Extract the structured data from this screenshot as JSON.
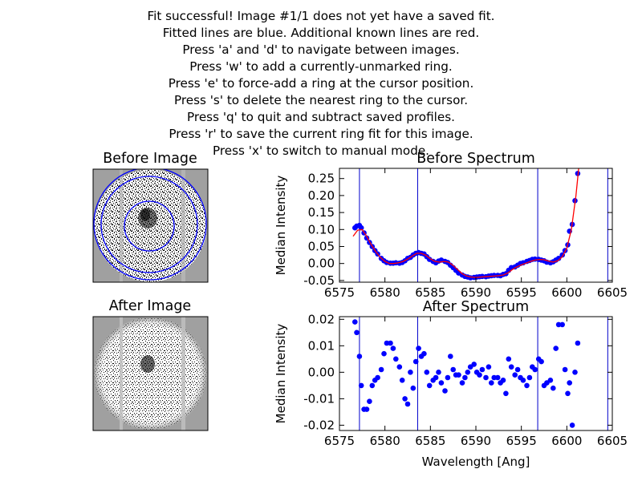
{
  "instructions": [
    "Fit successful! Image #1/1 does not yet have a saved fit.",
    "Fitted lines are blue. Additional known lines are red.",
    "Press 'a' and 'd' to navigate between images.",
    "Press 'w' to add a currently-unmarked ring.",
    "Press 'e' to force-add a ring at the cursor position.",
    "Press 's' to delete the nearest ring to the cursor.",
    "Press 'q' to quit and subtract saved profiles.",
    "Press 'r' to save the current ring fit for this image.",
    "Press 'x' to switch to manual mode."
  ],
  "images": {
    "before_title": "Before Image",
    "after_title": "After Image"
  },
  "colors": {
    "points": "#0000ff",
    "fit_line": "#ff0000",
    "ring_lines": "#0000cc",
    "image_background": "#a0a0a0"
  },
  "chart_data": [
    {
      "type": "scatter",
      "title": "Before Spectrum",
      "xlabel": "",
      "ylabel": "Median Intensity",
      "xlim": [
        6575,
        6605
      ],
      "ylim": [
        -0.055,
        0.28
      ],
      "xticks": [
        "6575",
        "6580",
        "6585",
        "6590",
        "6595",
        "6600",
        "6605"
      ],
      "yticks": [
        "-0.05",
        "0.00",
        "0.05",
        "0.10",
        "0.15",
        "0.20",
        "0.25"
      ],
      "vlines": [
        6577.2,
        6583.6,
        6596.8,
        6604.5
      ],
      "series": [
        {
          "kind": "points",
          "x": [
            6576.7,
            6576.9,
            6577.2,
            6577.4,
            6577.7,
            6578.0,
            6578.3,
            6578.6,
            6578.9,
            6579.2,
            6579.6,
            6579.9,
            6580.2,
            6580.6,
            6580.9,
            6581.2,
            6581.6,
            6581.9,
            6582.2,
            6582.5,
            6582.8,
            6583.1,
            6583.4,
            6583.7,
            6584.0,
            6584.3,
            6584.6,
            6584.9,
            6585.3,
            6585.6,
            6585.9,
            6586.2,
            6586.6,
            6586.9,
            6587.2,
            6587.5,
            6587.8,
            6588.1,
            6588.5,
            6588.8,
            6589.1,
            6589.4,
            6589.8,
            6590.1,
            6590.4,
            6590.7,
            6591.1,
            6591.4,
            6591.7,
            6592.0,
            6592.4,
            6592.7,
            6593.0,
            6593.3,
            6593.6,
            6593.9,
            6594.3,
            6594.6,
            6594.9,
            6595.2,
            6595.6,
            6595.9,
            6596.2,
            6596.5,
            6596.9,
            6597.2,
            6597.5,
            6597.8,
            6598.2,
            6598.5,
            6598.8,
            6599.1,
            6599.5,
            6599.8,
            6600.1,
            6600.3,
            6600.6,
            6600.9,
            6601.2
          ],
          "y": [
            0.105,
            0.11,
            0.112,
            0.105,
            0.09,
            0.075,
            0.062,
            0.05,
            0.038,
            0.028,
            0.015,
            0.008,
            0.003,
            0.001,
            0.001,
            0.002,
            0.001,
            0.003,
            0.008,
            0.015,
            0.018,
            0.025,
            0.03,
            0.032,
            0.03,
            0.028,
            0.02,
            0.012,
            0.006,
            0.002,
            0.007,
            0.01,
            0.006,
            0.003,
            -0.005,
            -0.012,
            -0.02,
            -0.028,
            -0.034,
            -0.038,
            -0.04,
            -0.042,
            -0.041,
            -0.04,
            -0.039,
            -0.038,
            -0.039,
            -0.037,
            -0.036,
            -0.035,
            -0.035,
            -0.036,
            -0.032,
            -0.03,
            -0.02,
            -0.012,
            -0.01,
            -0.005,
            0.0,
            0.002,
            0.006,
            0.009,
            0.012,
            0.013,
            0.012,
            0.01,
            0.008,
            0.004,
            0.002,
            0.005,
            0.01,
            0.015,
            0.025,
            0.038,
            0.055,
            0.095,
            0.115,
            0.185,
            0.265
          ]
        },
        {
          "kind": "line",
          "x": [
            6576.5,
            6577.0,
            6577.5,
            6578.0,
            6578.5,
            6579.0,
            6579.5,
            6580.0,
            6580.5,
            6581.0,
            6581.5,
            6582.0,
            6582.5,
            6583.0,
            6583.5,
            6584.0,
            6584.5,
            6585.0,
            6585.5,
            6586.0,
            6586.5,
            6587.0,
            6587.5,
            6588.0,
            6588.5,
            6589.0,
            6589.5,
            6590.0,
            6590.5,
            6591.0,
            6591.5,
            6592.0,
            6592.5,
            6593.0,
            6593.5,
            6594.0,
            6594.5,
            6595.0,
            6595.5,
            6596.0,
            6596.5,
            6597.0,
            6597.5,
            6598.0,
            6598.5,
            6599.0,
            6599.5,
            6600.0,
            6600.5,
            6601.0,
            6601.3
          ],
          "y": [
            0.08,
            0.098,
            0.1,
            0.08,
            0.055,
            0.035,
            0.018,
            0.006,
            0.0,
            0.0,
            0.002,
            0.006,
            0.013,
            0.022,
            0.03,
            0.03,
            0.024,
            0.014,
            0.006,
            0.004,
            0.006,
            0.004,
            -0.006,
            -0.018,
            -0.03,
            -0.037,
            -0.04,
            -0.041,
            -0.04,
            -0.039,
            -0.038,
            -0.037,
            -0.036,
            -0.034,
            -0.028,
            -0.018,
            -0.01,
            -0.004,
            0.001,
            0.006,
            0.01,
            0.012,
            0.011,
            0.007,
            0.004,
            0.008,
            0.02,
            0.045,
            0.1,
            0.2,
            0.28
          ]
        }
      ]
    },
    {
      "type": "scatter",
      "title": "After Spectrum",
      "xlabel": "Wavelength [Ang]",
      "ylabel": "Median Intensity",
      "xlim": [
        6575,
        6605
      ],
      "ylim": [
        -0.022,
        0.021
      ],
      "xticks": [
        "6575",
        "6580",
        "6585",
        "6590",
        "6595",
        "6600",
        "6605"
      ],
      "yticks": [
        "-0.02",
        "-0.01",
        "0.00",
        "0.01",
        "0.02"
      ],
      "vlines": [
        6577.2,
        6583.6,
        6596.8,
        6604.5
      ],
      "series": [
        {
          "kind": "points",
          "x": [
            6576.7,
            6576.9,
            6577.2,
            6577.4,
            6577.7,
            6578.0,
            6578.3,
            6578.6,
            6578.9,
            6579.2,
            6579.6,
            6579.9,
            6580.2,
            6580.6,
            6580.9,
            6581.2,
            6581.6,
            6581.9,
            6582.2,
            6582.5,
            6582.8,
            6583.1,
            6583.4,
            6583.7,
            6584.0,
            6584.3,
            6584.6,
            6584.9,
            6585.3,
            6585.6,
            6585.9,
            6586.2,
            6586.6,
            6586.9,
            6587.2,
            6587.5,
            6587.8,
            6588.1,
            6588.5,
            6588.8,
            6589.1,
            6589.4,
            6589.8,
            6590.1,
            6590.4,
            6590.7,
            6591.1,
            6591.4,
            6591.7,
            6592.0,
            6592.4,
            6592.7,
            6593.0,
            6593.3,
            6593.6,
            6593.9,
            6594.3,
            6594.6,
            6594.9,
            6595.2,
            6595.6,
            6595.9,
            6596.2,
            6596.5,
            6596.9,
            6597.2,
            6597.5,
            6597.8,
            6598.2,
            6598.5,
            6598.8,
            6599.1,
            6599.5,
            6599.8,
            6600.1,
            6600.3,
            6600.6,
            6600.9,
            6601.2
          ],
          "y": [
            0.019,
            0.015,
            0.006,
            -0.005,
            -0.014,
            -0.014,
            -0.011,
            -0.005,
            -0.003,
            -0.002,
            0.001,
            0.007,
            0.011,
            0.011,
            0.009,
            0.005,
            0.002,
            -0.003,
            -0.01,
            -0.012,
            0.0,
            -0.006,
            0.004,
            0.009,
            0.006,
            0.007,
            0.0,
            -0.005,
            -0.003,
            -0.002,
            0.0,
            -0.004,
            -0.007,
            -0.002,
            0.006,
            0.001,
            -0.001,
            -0.001,
            -0.004,
            -0.002,
            0.0,
            0.002,
            0.003,
            0.0,
            -0.001,
            0.001,
            -0.002,
            0.002,
            -0.004,
            -0.002,
            -0.002,
            -0.004,
            -0.003,
            -0.008,
            0.005,
            0.002,
            -0.001,
            0.001,
            -0.002,
            -0.003,
            -0.005,
            -0.002,
            0.002,
            0.001,
            0.005,
            0.004,
            -0.005,
            -0.004,
            -0.003,
            -0.006,
            0.009,
            0.018,
            0.018,
            0.001,
            -0.008,
            -0.004,
            -0.02,
            0.0,
            0.011
          ]
        }
      ]
    }
  ]
}
